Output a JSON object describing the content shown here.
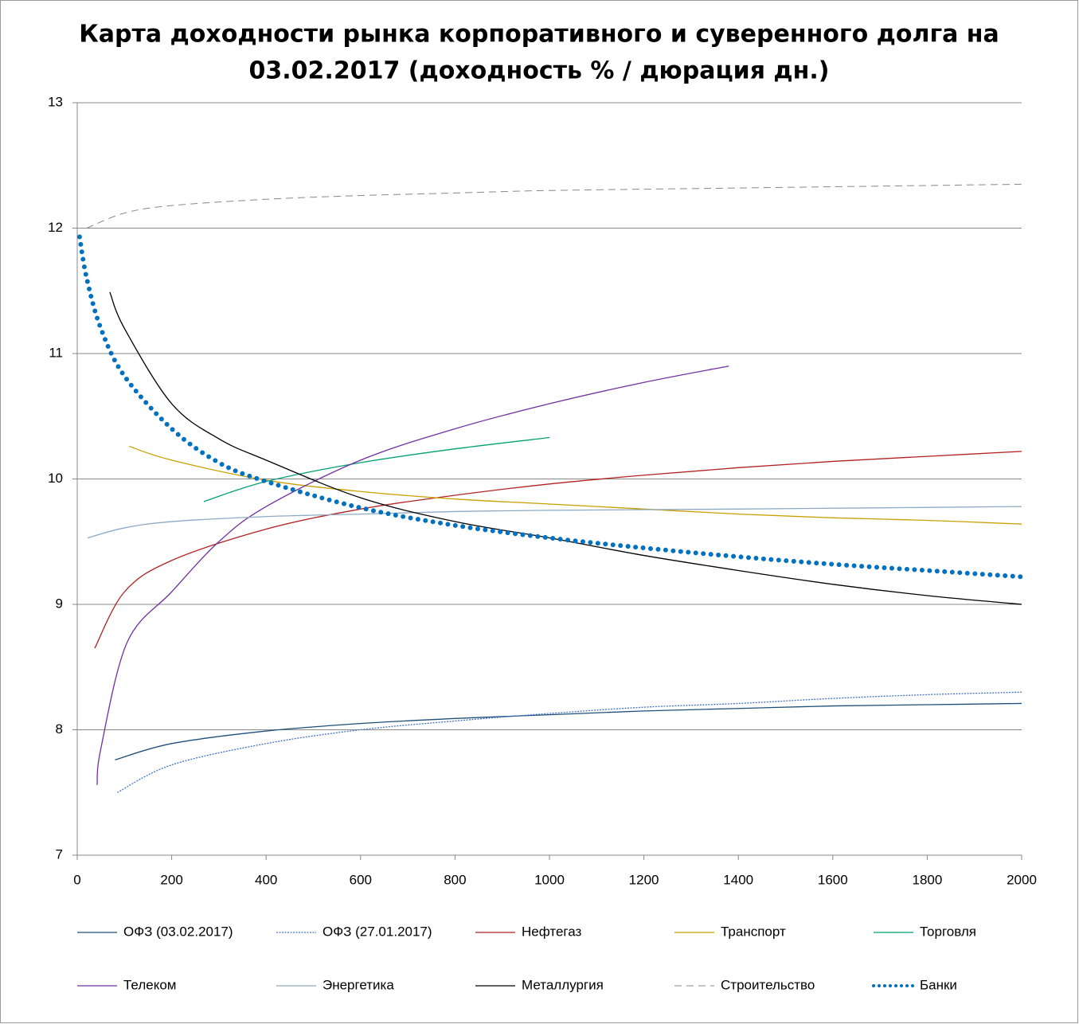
{
  "chart_data": {
    "type": "line",
    "title": [
      "Карта доходности рынка корпоративного и суверенного долга на",
      "03.02.2017 (доходность % / дюрация дн.)"
    ],
    "xlim": [
      0,
      2000
    ],
    "xticks": [
      0,
      200,
      400,
      600,
      800,
      1000,
      1200,
      1400,
      1600,
      1800,
      2000
    ],
    "ylim": [
      7,
      13
    ],
    "yticks": [
      7,
      8,
      9,
      10,
      11,
      12,
      13
    ],
    "grid": true,
    "legend": "bottom",
    "series": [
      {
        "name": "ОФЗ (03.02.2017)",
        "color": "#1f4e79",
        "dash": "solid",
        "x": [
          80,
          200,
          400,
          600,
          800,
          1000,
          1200,
          1400,
          1600,
          1800,
          2000
        ],
        "values": [
          7.76,
          7.89,
          7.99,
          8.05,
          8.09,
          8.12,
          8.15,
          8.17,
          8.19,
          8.2,
          8.21
        ]
      },
      {
        "name": "ОФЗ (27.01.2017)",
        "color": "#4472c4",
        "dash": "dotted",
        "x": [
          85,
          200,
          400,
          600,
          800,
          1000,
          1200,
          1400,
          1600,
          1800,
          2000
        ],
        "values": [
          7.5,
          7.72,
          7.89,
          8.0,
          8.07,
          8.13,
          8.18,
          8.21,
          8.25,
          8.28,
          8.3
        ]
      },
      {
        "name": "Нефтегаз",
        "color": "#b22222",
        "dash": "solid",
        "x": [
          37,
          100,
          200,
          400,
          600,
          800,
          1000,
          1200,
          1400,
          1600,
          1800,
          2000
        ],
        "values": [
          8.65,
          9.1,
          9.35,
          9.6,
          9.76,
          9.87,
          9.96,
          10.03,
          10.09,
          10.14,
          10.18,
          10.22
        ]
      },
      {
        "name": "Транспорт",
        "color": "#c9a000",
        "dash": "solid",
        "x": [
          110,
          200,
          400,
          600,
          800,
          1000,
          1200,
          1400,
          1600,
          1800,
          2000
        ],
        "values": [
          10.26,
          10.15,
          9.99,
          9.9,
          9.84,
          9.8,
          9.76,
          9.72,
          9.69,
          9.67,
          9.64
        ]
      },
      {
        "name": "Торговля",
        "color": "#00a070",
        "dash": "solid",
        "x": [
          268,
          400,
          600,
          800,
          1000
        ],
        "values": [
          9.82,
          9.98,
          10.13,
          10.24,
          10.33
        ]
      },
      {
        "name": "Телеком",
        "color": "#7030a0",
        "dash": "solid",
        "x": [
          42,
          50,
          106,
          200,
          300,
          400,
          600,
          800,
          1000,
          1200,
          1380
        ],
        "values": [
          7.56,
          7.85,
          8.7,
          9.1,
          9.5,
          9.78,
          10.15,
          10.4,
          10.6,
          10.77,
          10.9
        ]
      },
      {
        "name": "Энергетика",
        "color": "#8fa9c4",
        "dash": "solid",
        "x": [
          22,
          100,
          200,
          400,
          600,
          800,
          1000,
          1400,
          2000
        ],
        "values": [
          9.53,
          9.61,
          9.66,
          9.7,
          9.72,
          9.74,
          9.75,
          9.76,
          9.78
        ]
      },
      {
        "name": "Металлургия",
        "color": "#000000",
        "dash": "solid",
        "x": [
          69,
          100,
          200,
          300,
          400,
          600,
          800,
          1000,
          1200,
          1400,
          1600,
          1800,
          2000
        ],
        "values": [
          11.49,
          11.2,
          10.6,
          10.32,
          10.15,
          9.85,
          9.66,
          9.53,
          9.39,
          9.27,
          9.16,
          9.07,
          9.0
        ]
      },
      {
        "name": "Строительство",
        "color": "#888888",
        "dash": "dashed",
        "x": [
          20,
          100,
          200,
          400,
          600,
          800,
          1000,
          1400,
          1800,
          2000
        ],
        "values": [
          12.0,
          12.12,
          12.18,
          12.23,
          12.26,
          12.28,
          12.3,
          12.32,
          12.34,
          12.35
        ]
      },
      {
        "name": "Банки",
        "color": "#0070c0",
        "dash": "round-dots",
        "x": [
          5,
          20,
          50,
          100,
          200,
          300,
          400,
          600,
          800,
          1000,
          1200,
          1400,
          1600,
          1800,
          2000
        ],
        "values": [
          11.93,
          11.6,
          11.2,
          10.82,
          10.4,
          10.13,
          9.98,
          9.77,
          9.63,
          9.53,
          9.45,
          9.38,
          9.32,
          9.27,
          9.22
        ]
      }
    ]
  }
}
